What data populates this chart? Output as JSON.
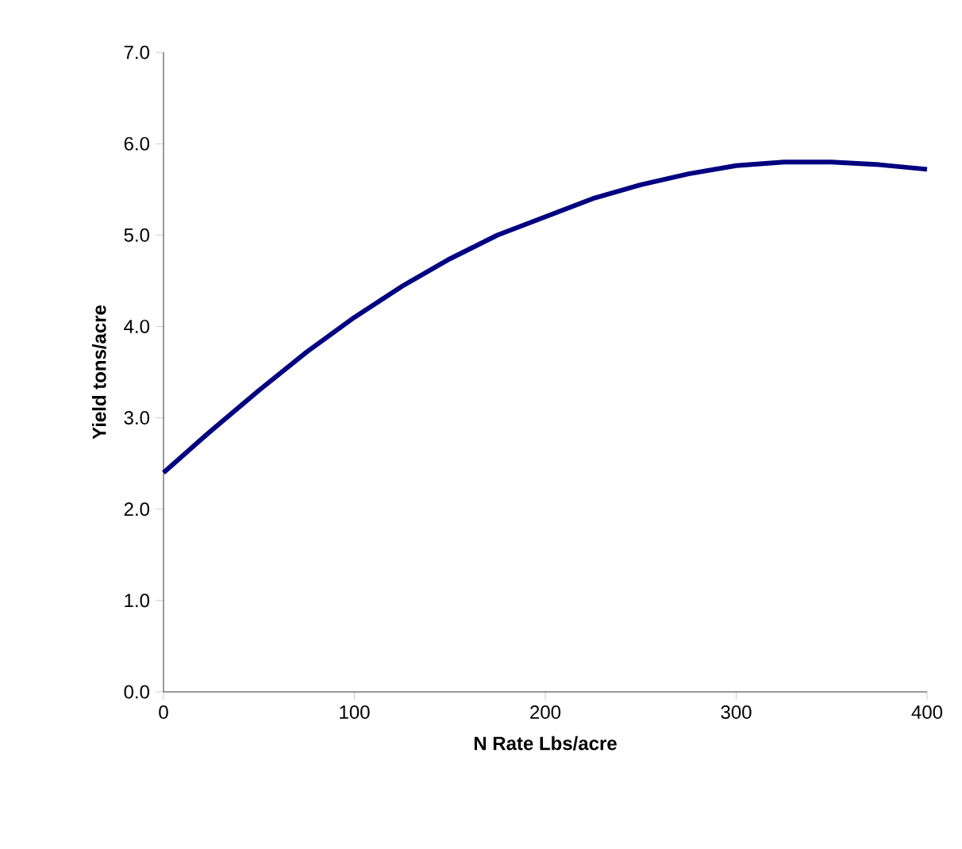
{
  "chart_data": {
    "type": "line",
    "xlabel": "N Rate Lbs/acre",
    "ylabel": "Yield tons/acre",
    "x": [
      0,
      25,
      50,
      75,
      100,
      125,
      150,
      175,
      200,
      225,
      250,
      275,
      300,
      325,
      350,
      375,
      400
    ],
    "series": [
      {
        "color": "#000080",
        "values": [
          2.4,
          2.86,
          3.3,
          3.72,
          4.1,
          4.44,
          4.74,
          5.0,
          5.2,
          5.4,
          5.55,
          5.67,
          5.76,
          5.8,
          5.8,
          5.77,
          5.72
        ]
      }
    ],
    "xlim": [
      0,
      400
    ],
    "ylim": [
      0,
      7
    ],
    "xticks": [
      0,
      100,
      200,
      300,
      400
    ],
    "yticks": [
      {
        "value": 0,
        "label": "0.0"
      },
      {
        "value": 1,
        "label": "1.0"
      },
      {
        "value": 2,
        "label": "2.0"
      },
      {
        "value": 3,
        "label": "3.0"
      },
      {
        "value": 4,
        "label": "4.0"
      },
      {
        "value": 5,
        "label": "5.0"
      },
      {
        "value": 6,
        "label": "6.0"
      },
      {
        "value": 7,
        "label": "7.0"
      }
    ],
    "marker": "none",
    "line_style": "solid"
  }
}
